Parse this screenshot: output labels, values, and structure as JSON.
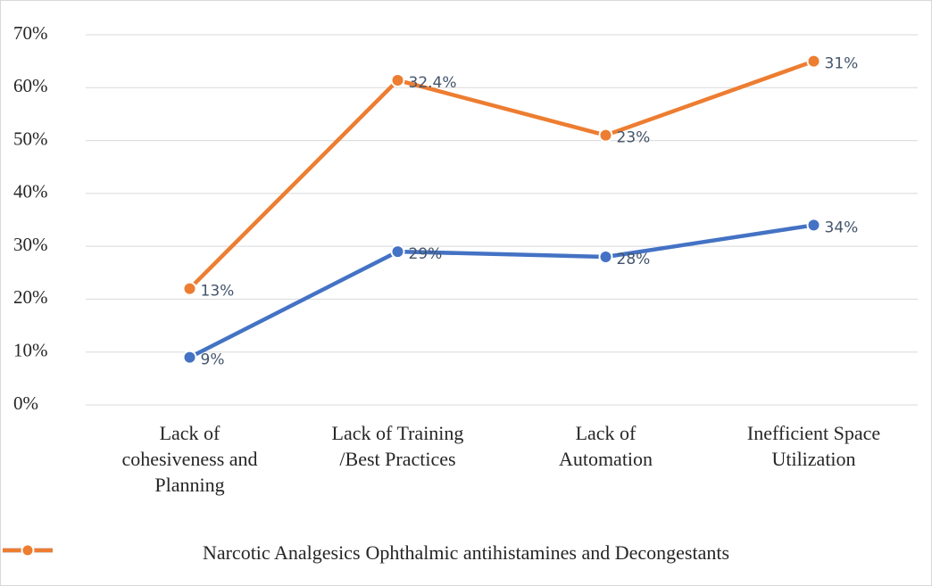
{
  "chart_data": {
    "type": "line",
    "stacked": true,
    "categories": [
      "Lack of\ncohesiveness and\nPlanning",
      "Lack of Training\n/Best Practices",
      "Lack of\nAutomation",
      "Inefficient Space\nUtilization"
    ],
    "series": [
      {
        "name": "Narcotic Analgesics",
        "color": "#4472c4",
        "values": [
          9,
          29,
          28,
          34
        ],
        "value_labels": [
          "9%",
          "29%",
          "28%",
          "34%"
        ]
      },
      {
        "name": "Ophthalmic antihistamines and Decongestants",
        "color": "#ed7d31",
        "values": [
          13,
          32.4,
          23,
          31
        ],
        "value_labels": [
          "13%",
          "32.4%",
          "23%",
          "31%"
        ]
      }
    ],
    "ylim": [
      0,
      70
    ],
    "yticks": [
      {
        "value": 0,
        "label": "0%"
      },
      {
        "value": 10,
        "label": "10%"
      },
      {
        "value": 20,
        "label": "20%"
      },
      {
        "value": 30,
        "label": "30%"
      },
      {
        "value": 40,
        "label": "40%"
      },
      {
        "value": 50,
        "label": "50%"
      },
      {
        "value": 60,
        "label": "60%"
      },
      {
        "value": 70,
        "label": "70%"
      }
    ],
    "grid": true,
    "legend": "bottom"
  }
}
